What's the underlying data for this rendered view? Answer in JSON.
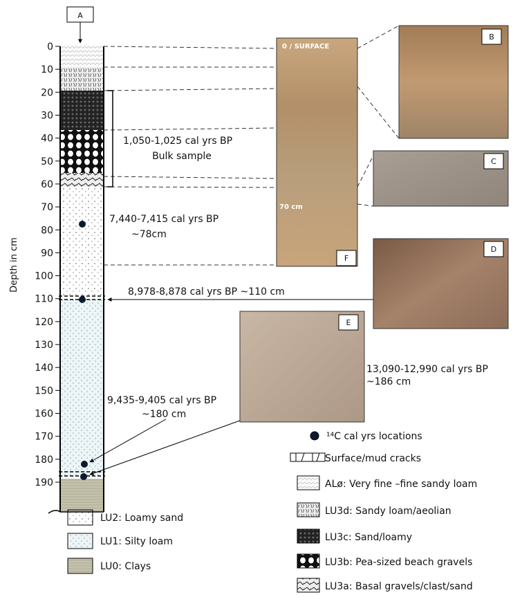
{
  "panel_label": "A",
  "depth_axis": {
    "label": "Depth in cm",
    "ticks": [
      0,
      10,
      20,
      30,
      40,
      50,
      60,
      70,
      80,
      90,
      100,
      110,
      120,
      130,
      140,
      150,
      160,
      170,
      180,
      190
    ]
  },
  "annotations": {
    "bulk_date": "1,050-1,025 cal yrs BP",
    "bulk_note": "Bulk sample",
    "date_78": "7,440-7,415 cal yrs BP",
    "depth_78": "~78cm",
    "date_110": "8,978-8,878 cal yrs BP ~110 cm",
    "date_186": "13,090-12,990 cal yrs BP",
    "depth_186": "~186 cm",
    "date_180": "9,435-9,405 cal yrs BP",
    "depth_180": "~180 cm"
  },
  "photos": {
    "F": {
      "label": "F",
      "top_text": "0 / SURFACE",
      "depth_text": "70 cm"
    },
    "B": {
      "label": "B"
    },
    "C": {
      "label": "C"
    },
    "D": {
      "label": "D"
    },
    "E": {
      "label": "E"
    }
  },
  "legend": {
    "c14": "¹⁴C cal yrs locations",
    "cracks": "Surface/mud cracks",
    "alo": "ALø:  Very fine –fine sandy loam",
    "lu3d": "LU3d:  Sandy loam/aeolian",
    "lu3c": "LU3c:  Sand/loamy",
    "lu3b": "LU3b:  Pea-sized beach gravels",
    "lu3a": "LU3a:  Basal gravels/clast/sand",
    "lu2": "LU2:  Loamy sand",
    "lu1": "LU1:  Silty loam",
    "lu0": "LU0:  Clays"
  }
}
